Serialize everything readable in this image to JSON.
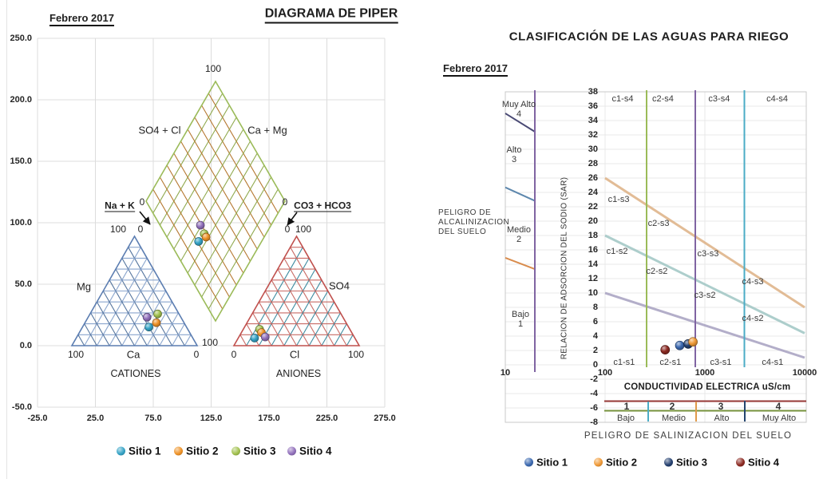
{
  "piper": {
    "title": "DIAGRAMA DE PIPER",
    "date_label": "Febrero 2017",
    "y_ticks": [
      "250.0",
      "200.0",
      "150.0",
      "100.0",
      "50.0",
      "0.0",
      "-50.0"
    ],
    "x_ticks": [
      "-25.0",
      "25.0",
      "75.0",
      "125.0",
      "175.0",
      "225.0",
      "275.0"
    ],
    "labels": {
      "diamond_top": "100",
      "diamond_bottom": "100",
      "so4_cl": "SO4 + Cl",
      "ca_mg": "Ca + Mg",
      "na_k": "Na + K",
      "diamond_left_zero": "0",
      "diamond_right_zero": "0",
      "co3_hco3": "CO3 + HCO3",
      "cation_apex_100": "100",
      "cation_apex_0": "0",
      "anion_apex_0": "0",
      "anion_apex_100": "100",
      "mg": "Mg",
      "so4": "SO4",
      "cation_bottom_left": "100",
      "cation_bottom_axis": "Ca",
      "cation_bottom_right": "0",
      "anion_bottom_left": "0",
      "anion_bottom_axis": "Cl",
      "anion_bottom_right": "100",
      "cation_title": "CATIONES",
      "anion_title": "ANIONES"
    },
    "legend": [
      {
        "label": "Sitio 1",
        "color": "#35a3c6"
      },
      {
        "label": "Sitio 2",
        "color": "#ee9227"
      },
      {
        "label": "Sitio 3",
        "color": "#a2c14e"
      },
      {
        "label": "Sitio 4",
        "color": "#9170bb"
      }
    ]
  },
  "wilcox": {
    "title": "CLASIFICACIÓN DE LAS AGUAS PARA RIEGO",
    "date_label": "Febrero 2017",
    "alkalinity_lines": [
      "PELIGRO DE",
      "ALCALINIZACION",
      "DEL SUELO"
    ],
    "sar_axis_label": "RELACION DE ADSORCION DEL SODIO (SAR)",
    "conductivity_label": "CONDUCTIVIDAD ELECTRICA uS/cm",
    "salinity_title": "PELIGRO DE SALINIZACION DEL SUELO",
    "ec_ticks": [
      "10",
      "100",
      "1000",
      "10000"
    ],
    "sar_tick_min": -8,
    "sar_tick_max": 38,
    "sar_tick_step": 2,
    "sodium_scale": [
      {
        "name": "Muy Alto",
        "num": "4"
      },
      {
        "name": "Alto",
        "num": "3"
      },
      {
        "name": "Medio",
        "num": "2"
      },
      {
        "name": "Bajo",
        "num": "1"
      }
    ],
    "salinity_scale": [
      {
        "num": "1",
        "name": "Bajo"
      },
      {
        "num": "2",
        "name": "Medio"
      },
      {
        "num": "3",
        "name": "Alto"
      },
      {
        "num": "4",
        "name": "Muy Alto"
      }
    ],
    "legend": [
      {
        "label": "Sitio 1",
        "color": "#3c69b0"
      },
      {
        "label": "Sitio 2",
        "color": "#f09a38"
      },
      {
        "label": "Sitio 3",
        "color": "#24406f"
      },
      {
        "label": "Sitio 4",
        "color": "#8c2a22"
      }
    ]
  },
  "chart_data": [
    {
      "type": "scatter",
      "subtype": "piper-trilinear",
      "title": "DIAGRAMA DE PIPER",
      "subtitle": "Febrero 2017",
      "cation_axes": {
        "bottom": "Ca",
        "left": "Mg",
        "apex_labels": [
          "100",
          "0"
        ],
        "bottom_scale": [
          100,
          0
        ]
      },
      "anion_axes": {
        "bottom": "Cl",
        "right": "SO4",
        "apex_labels": [
          "0",
          "100"
        ],
        "bottom_scale": [
          0,
          100
        ]
      },
      "diamond_axes": {
        "upper_left": "SO4 + Cl",
        "upper_right": "Ca + Mg",
        "top": 100
      },
      "outer_y_ticks": [
        250,
        200,
        150,
        100,
        50,
        0,
        -50
      ],
      "outer_x_ticks": [
        -25,
        25,
        75,
        125,
        175,
        225,
        275
      ],
      "series": [
        {
          "name": "Sitio 1",
          "color": "#35a3c6",
          "cations_pct": {
            "Ca": 30,
            "Mg": 17,
            "Na_K": 53
          },
          "anions_pct": {
            "Cl": 13,
            "SO4": 7,
            "CO3_HCO3": 80
          }
        },
        {
          "name": "Sitio 2",
          "color": "#ee9227",
          "cations_pct": {
            "Ca": 22,
            "Mg": 21,
            "Na_K": 57
          },
          "anions_pct": {
            "Cl": 16,
            "SO4": 12,
            "CO3_HCO3": 72
          }
        },
        {
          "name": "Sitio 3",
          "color": "#a2c14e",
          "cations_pct": {
            "Ca": 17,
            "Mg": 29,
            "Na_K": 54
          },
          "anions_pct": {
            "Cl": 13,
            "SO4": 15,
            "CO3_HCO3": 72
          }
        },
        {
          "name": "Sitio 4",
          "color": "#9170bb",
          "cations_pct": {
            "Ca": 27,
            "Mg": 26,
            "Na_K": 47
          },
          "anions_pct": {
            "Cl": 21,
            "SO4": 8,
            "CO3_HCO3": 71
          }
        }
      ]
    },
    {
      "type": "scatter",
      "subtype": "wilcox-ussl",
      "title": "CLASIFICACIÓN DE LAS AGUAS PARA RIEGO",
      "subtitle": "Febrero 2017",
      "xlabel": "CONDUCTIVIDAD ELECTRICA uS/cm",
      "ylabel": "RELACION DE ADSORCION DEL SODIO (SAR)",
      "x_scale": "log",
      "xlim": [
        10,
        10000
      ],
      "ylim": [
        -8,
        38
      ],
      "salinity_class_boundaries_ec": [
        250,
        750,
        2250
      ],
      "points": [
        {
          "name": "Sitio 1",
          "color": "#3c69b0",
          "ec": 560,
          "sar": 2.7
        },
        {
          "name": "Sitio 2",
          "color": "#f09a38",
          "ec": 760,
          "sar": 3.2
        },
        {
          "name": "Sitio 3",
          "color": "#24406f",
          "ec": 680,
          "sar": 2.9
        },
        {
          "name": "Sitio 4",
          "color": "#8c2a22",
          "ec": 400,
          "sar": 2.1
        }
      ],
      "boundary_lines": [
        {
          "name": "s3-s4",
          "from": {
            "ec": 100,
            "sar": 26
          },
          "to": {
            "ec": 10000,
            "sar": 8
          }
        },
        {
          "name": "s2-s3",
          "from": {
            "ec": 100,
            "sar": 18
          },
          "to": {
            "ec": 10000,
            "sar": 4.4
          }
        },
        {
          "name": "s1-s2",
          "from": {
            "ec": 100,
            "sar": 10
          },
          "to": {
            "ec": 10000,
            "sar": 1
          }
        }
      ],
      "boundary_segments_low_ec": [
        {
          "name": "s3-s4",
          "from": {
            "ec": 10,
            "sar": 35
          },
          "to": {
            "ec": 20,
            "sar": 32.4
          }
        },
        {
          "name": "s2-s3",
          "from": {
            "ec": 10,
            "sar": 24.7
          },
          "to": {
            "ec": 20,
            "sar": 22.8
          }
        },
        {
          "name": "s1-s2",
          "from": {
            "ec": 10,
            "sar": 14.9
          },
          "to": {
            "ec": 20,
            "sar": 13.3
          }
        }
      ],
      "zones": [
        {
          "label": "c1-s4",
          "ec": 150,
          "sar": 37
        },
        {
          "label": "c2-s4",
          "ec": 380,
          "sar": 37
        },
        {
          "label": "c3-s4",
          "ec": 1390,
          "sar": 37
        },
        {
          "label": "c4-s4",
          "ec": 5300,
          "sar": 37
        },
        {
          "label": "c1-s3",
          "ec": 137,
          "sar": 23
        },
        {
          "label": "c2-s3",
          "ec": 344,
          "sar": 19.7
        },
        {
          "label": "c3-s3",
          "ec": 1076,
          "sar": 15.4
        },
        {
          "label": "c4-s3",
          "ec": 3020,
          "sar": 11.6
        },
        {
          "label": "c1-s2",
          "ec": 132,
          "sar": 15.8
        },
        {
          "label": "c2-s2",
          "ec": 331,
          "sar": 13
        },
        {
          "label": "c3-s2",
          "ec": 1000,
          "sar": 9.7
        },
        {
          "label": "c4-s2",
          "ec": 3020,
          "sar": 6.4
        },
        {
          "label": "c1-s1",
          "ec": 155,
          "sar": 0.3
        },
        {
          "label": "c2-s1",
          "ec": 451,
          "sar": 0.3
        },
        {
          "label": "c3-s1",
          "ec": 1445,
          "sar": 0.3
        },
        {
          "label": "c4-s1",
          "ec": 4775,
          "sar": 0.3
        }
      ]
    }
  ]
}
